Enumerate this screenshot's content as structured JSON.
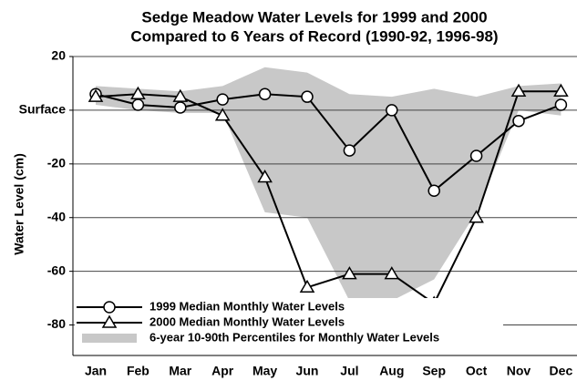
{
  "chart_data": {
    "type": "line",
    "title": [
      "Sedge Meadow Water Levels for 1999 and 2000",
      "Compared to 6 Years of Record (1990-92, 1996-98)"
    ],
    "y_label": "Water Level (cm)",
    "categories": [
      "Jan",
      "Feb",
      "Mar",
      "Apr",
      "May",
      "Jun",
      "Jul",
      "Aug",
      "Sep",
      "Oct",
      "Nov",
      "Dec"
    ],
    "ylim": [
      -90,
      20
    ],
    "yticks": [
      20,
      {
        "value": 0,
        "label": "Surface"
      },
      -20,
      -40,
      -60,
      -80
    ],
    "grid": true,
    "series": [
      {
        "name": "1999 Median Monthly Water Levels",
        "color": "#000000",
        "marker": "circle",
        "values": [
          6,
          2,
          1,
          4,
          6,
          5,
          -15,
          0,
          -30,
          -17,
          -4,
          2
        ]
      },
      {
        "name": "2000 Median Monthly Water Levels",
        "color": "#000000",
        "marker": "triangle",
        "values": [
          5,
          6,
          5,
          -2,
          -25,
          -66,
          -61,
          -61,
          -72,
          -40,
          7,
          7
        ]
      },
      {
        "name": "6-year 10-90th Percentiles for Monthly Water Levels",
        "color": "#c8c8c8",
        "marker": "area",
        "values": [
          9,
          8,
          7,
          9,
          16,
          14,
          6,
          5,
          8,
          5,
          9,
          10
        ],
        "lower": [
          2,
          0,
          -1,
          -1,
          -38,
          -40,
          -71,
          -71,
          -63,
          -38,
          0,
          -2
        ]
      }
    ],
    "legend": "lower left"
  }
}
